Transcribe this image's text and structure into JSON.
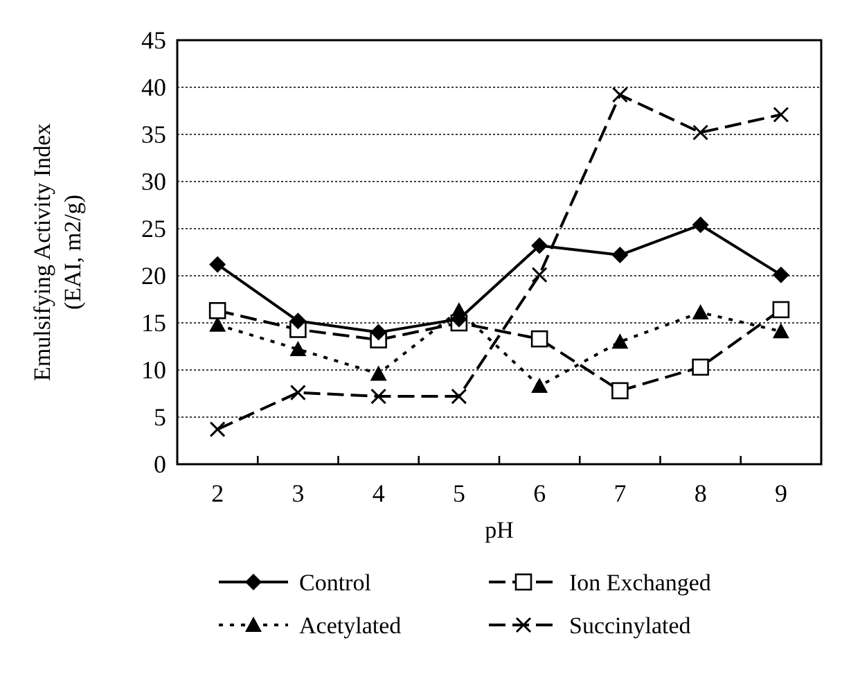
{
  "chart_data": {
    "type": "line",
    "xlabel": "pH",
    "ylabel": "Emulsifying Activity Index (EAI, m2/g)",
    "categories": [
      "2",
      "3",
      "4",
      "5",
      "6",
      "7",
      "8",
      "9"
    ],
    "ylim": [
      0,
      45
    ],
    "yticks": [
      0,
      5,
      10,
      15,
      20,
      25,
      30,
      35,
      40,
      45
    ],
    "grid": "y",
    "legend": "bottom",
    "series": [
      {
        "name": "Control",
        "color": "#000000",
        "marker": "diamond",
        "line_style": "solid",
        "values": [
          21.2,
          15.2,
          14,
          15.4,
          23.2,
          22.2,
          25.4,
          20.1
        ]
      },
      {
        "name": "Ion Exchanged",
        "color": "#000000",
        "marker": "square",
        "line_style": "dashed",
        "values": [
          16.3,
          14.3,
          13.2,
          15,
          13.3,
          7.8,
          10.3,
          16.4
        ]
      },
      {
        "name": "Acetylated",
        "color": "#000000",
        "marker": "triangle",
        "line_style": "dotted",
        "values": [
          14.8,
          12.2,
          9.6,
          16.3,
          8.3,
          13,
          16.1,
          14.1
        ]
      },
      {
        "name": "Succinylated",
        "color": "#000000",
        "marker": "cross",
        "line_style": "dashed",
        "values": [
          3.7,
          7.6,
          7.2,
          7.2,
          20.1,
          39.2,
          35.2,
          37.1
        ]
      }
    ]
  }
}
